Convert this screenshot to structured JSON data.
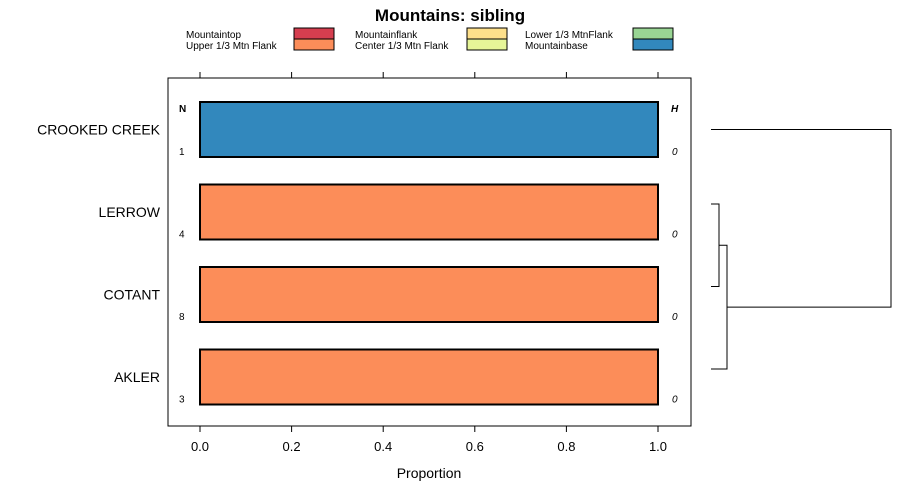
{
  "chart_data": {
    "type": "bar",
    "orientation": "horizontal",
    "stacked": true,
    "title": "Mountains: sibling",
    "xlabel": "Proportion",
    "ylabel": "",
    "xlim": [
      -0.07,
      1.07
    ],
    "xticks": [
      0.0,
      0.2,
      0.4,
      0.6,
      0.8,
      1.0
    ],
    "xtick_labels": [
      "0.0",
      "0.2",
      "0.4",
      "0.6",
      "0.8",
      "1.0"
    ],
    "legend": [
      {
        "name": "Mountaintop",
        "color": "#d53e4f"
      },
      {
        "name": "Upper 1/3 Mtn Flank",
        "color": "#fc8d59"
      },
      {
        "name": "Mountainflank",
        "color": "#fee08b"
      },
      {
        "name": "Center 1/3 Mtn Flank",
        "color": "#e6f598"
      },
      {
        "name": "Lower 1/3 MtnFlank",
        "color": "#99d594"
      },
      {
        "name": "Mountainbase",
        "color": "#3288bd"
      }
    ],
    "n_header": "N",
    "h_header": "H",
    "categories": [
      "CROOKED CREEK",
      "LERROW",
      "COTANT",
      "AKLER"
    ],
    "n": [
      "1",
      "4",
      "8",
      "3"
    ],
    "h": [
      "0",
      "0",
      "0",
      "0"
    ],
    "series": [
      {
        "name": "Mountaintop",
        "values": [
          0,
          0,
          0,
          0
        ]
      },
      {
        "name": "Upper 1/3 Mtn Flank",
        "values": [
          0,
          1,
          1,
          1
        ]
      },
      {
        "name": "Mountainflank",
        "values": [
          0,
          0,
          0,
          0
        ]
      },
      {
        "name": "Center 1/3 Mtn Flank",
        "values": [
          0,
          0,
          0,
          0
        ]
      },
      {
        "name": "Lower 1/3 MtnFlank",
        "values": [
          0,
          0,
          0,
          0
        ]
      },
      {
        "name": "Mountainbase",
        "values": [
          1,
          0,
          0,
          0
        ]
      }
    ],
    "dendrogram": {
      "merges": [
        {
          "a": "LERROW",
          "b": "COTANT",
          "height": 0.08
        },
        {
          "a": "LERROW+COTANT",
          "b": "AKLER",
          "height": 0.16
        },
        {
          "a": "CROOKED CREEK",
          "b": "LERROW+COTANT+AKLER",
          "height": 1.8
        }
      ]
    }
  }
}
